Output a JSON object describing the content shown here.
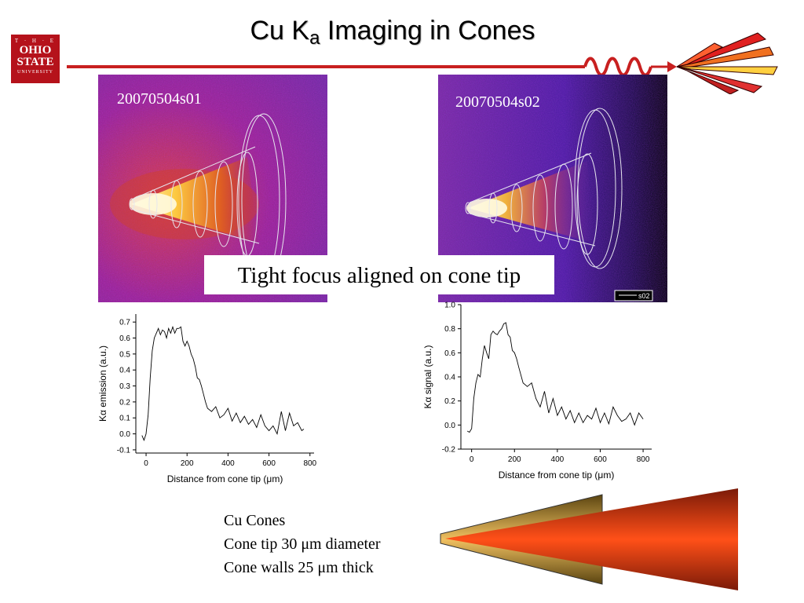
{
  "title": {
    "main": "Cu K",
    "sub": "a",
    "rest": " Imaging in Cones"
  },
  "logo": {
    "line1": "T · H · E",
    "line2a": "OHIO",
    "line2b": "STATE",
    "line3": "UNIVERSITY"
  },
  "images": [
    {
      "label": "20070504s01"
    },
    {
      "label": "20070504s02",
      "legend": "s02"
    }
  ],
  "caption": "Tight focus aligned on cone tip",
  "cone_notes": [
    "Cu Cones",
    "Cone tip 30 μm diameter",
    "Cone walls 25 μm thick"
  ],
  "chart_data": [
    {
      "type": "line",
      "xlabel": "Distance from cone tip (μm)",
      "ylabel": "Kα emission (a.u.)",
      "xlim": [
        -50,
        820
      ],
      "ylim": [
        -0.12,
        0.75
      ],
      "xticks": [
        0,
        200,
        400,
        600,
        800
      ],
      "yticks": [
        -0.1,
        0.0,
        0.1,
        0.2,
        0.3,
        0.4,
        0.5,
        0.6,
        0.7
      ],
      "x": [
        -20,
        -10,
        0,
        10,
        20,
        30,
        40,
        50,
        60,
        70,
        80,
        90,
        100,
        110,
        120,
        130,
        140,
        150,
        160,
        170,
        180,
        190,
        200,
        210,
        220,
        230,
        240,
        250,
        260,
        270,
        280,
        290,
        300,
        320,
        340,
        360,
        380,
        400,
        420,
        440,
        460,
        480,
        500,
        520,
        540,
        560,
        580,
        600,
        620,
        640,
        660,
        680,
        700,
        720,
        740,
        760,
        770
      ],
      "y": [
        -0.01,
        -0.04,
        0.0,
        0.12,
        0.35,
        0.52,
        0.6,
        0.63,
        0.66,
        0.62,
        0.65,
        0.64,
        0.6,
        0.66,
        0.63,
        0.67,
        0.63,
        0.66,
        0.66,
        0.67,
        0.58,
        0.55,
        0.58,
        0.55,
        0.5,
        0.47,
        0.42,
        0.35,
        0.34,
        0.3,
        0.25,
        0.2,
        0.16,
        0.14,
        0.17,
        0.1,
        0.12,
        0.16,
        0.08,
        0.13,
        0.07,
        0.11,
        0.06,
        0.09,
        0.04,
        0.12,
        0.05,
        0.02,
        0.05,
        0.0,
        0.14,
        0.02,
        0.13,
        0.05,
        0.07,
        0.02,
        0.03
      ]
    },
    {
      "type": "line",
      "xlabel": "Distance from cone tip (μm)",
      "ylabel": "Kα signal (a.u.)",
      "xlim": [
        -50,
        840
      ],
      "ylim": [
        -0.2,
        1.0
      ],
      "xticks": [
        0,
        200,
        400,
        600,
        800
      ],
      "yticks": [
        -0.2,
        0.0,
        0.2,
        0.4,
        0.6,
        0.8,
        1.0
      ],
      "x": [
        -20,
        -10,
        0,
        10,
        20,
        30,
        40,
        50,
        60,
        70,
        80,
        90,
        100,
        110,
        120,
        130,
        140,
        150,
        160,
        170,
        180,
        190,
        200,
        210,
        220,
        240,
        260,
        280,
        300,
        320,
        340,
        360,
        380,
        400,
        420,
        440,
        460,
        480,
        500,
        520,
        540,
        560,
        580,
        600,
        620,
        640,
        660,
        680,
        700,
        720,
        740,
        760,
        780,
        800
      ],
      "y": [
        -0.05,
        -0.06,
        -0.03,
        0.22,
        0.35,
        0.42,
        0.4,
        0.55,
        0.66,
        0.6,
        0.55,
        0.75,
        0.78,
        0.76,
        0.75,
        0.78,
        0.8,
        0.84,
        0.85,
        0.75,
        0.73,
        0.62,
        0.6,
        0.55,
        0.48,
        0.35,
        0.32,
        0.35,
        0.22,
        0.15,
        0.28,
        0.1,
        0.22,
        0.08,
        0.15,
        0.05,
        0.12,
        0.02,
        0.1,
        0.02,
        0.08,
        0.05,
        0.14,
        0.02,
        0.1,
        0.01,
        0.15,
        0.08,
        0.03,
        0.05,
        0.1,
        0.0,
        0.1,
        0.05
      ]
    }
  ]
}
